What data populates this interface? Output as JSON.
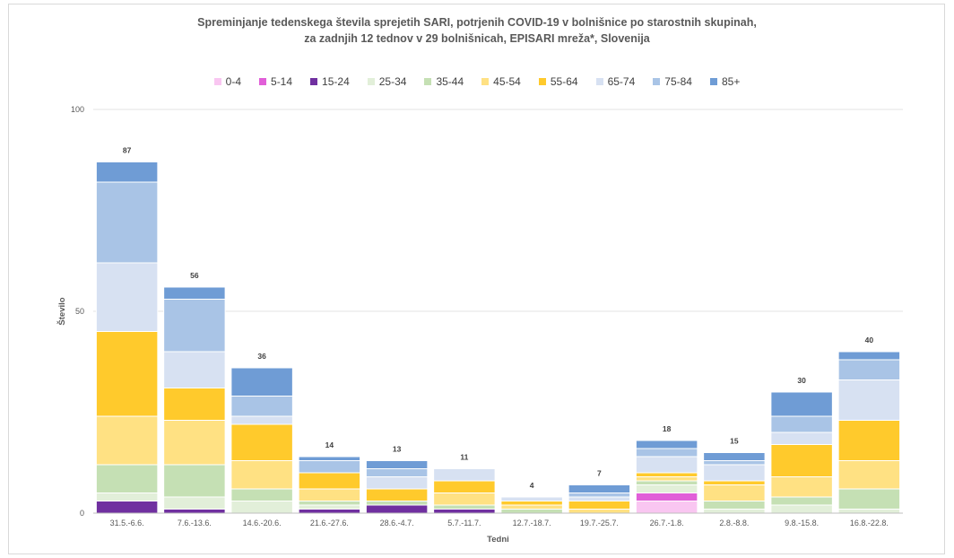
{
  "title_lines": [
    "Spreminjanje tedenskega števila sprejetih SARI, potrjenih COVID-19 v bolnišnice po starostnih skupinah,",
    "za zadnjih 12 tednov v 29 bolnišnicah, EPISARI mreža*, Slovenija"
  ],
  "chart_data": {
    "type": "bar",
    "stacked": true,
    "title": "Spreminjanje tedenskega števila sprejetih SARI, potrjenih COVID-19 v bolnišnice po starostnih skupinah, za zadnjih 12 tednov v 29 bolnišnicah, EPISARI mreža*, Slovenija",
    "xlabel": "Tedni",
    "ylabel": "Število",
    "ylim": [
      0,
      100
    ],
    "yticks": [
      "0",
      "50",
      "100"
    ],
    "grid": true,
    "legend_position": "top",
    "categories": [
      "31.5.-6.6.",
      "7.6.-13.6.",
      "14.6.-20.6.",
      "21.6.-27.6.",
      "28.6.-4.7.",
      "5.7.-11.7.",
      "12.7.-18.7.",
      "19.7.-25.7.",
      "26.7.-1.8.",
      "2.8.-8.8.",
      "9.8.-15.8.",
      "16.8.-22.8."
    ],
    "totals": [
      "87",
      "56",
      "36",
      "14",
      "13",
      "11",
      "4",
      "7",
      "18",
      "15",
      "30",
      "40"
    ],
    "series": [
      {
        "name": "0-4",
        "color": "#f9c6f1",
        "values": [
          0,
          0,
          0,
          0,
          0,
          0,
          0,
          0,
          3,
          0,
          0,
          0
        ]
      },
      {
        "name": "5-14",
        "color": "#e15fd8",
        "values": [
          0,
          0,
          0,
          0,
          0,
          0,
          0,
          0,
          2,
          0,
          0,
          0
        ]
      },
      {
        "name": "15-24",
        "color": "#7030a0",
        "values": [
          3,
          1,
          0,
          1,
          2,
          1,
          0,
          0,
          0,
          0,
          0,
          0
        ]
      },
      {
        "name": "25-34",
        "color": "#e2efd9",
        "values": [
          2,
          3,
          3,
          1,
          0,
          0,
          0,
          0,
          2,
          1,
          2,
          1
        ]
      },
      {
        "name": "35-44",
        "color": "#c5e0b4",
        "values": [
          7,
          8,
          3,
          1,
          1,
          1,
          1,
          0,
          1,
          2,
          2,
          5
        ]
      },
      {
        "name": "45-54",
        "color": "#ffe183",
        "values": [
          12,
          11,
          7,
          3,
          0,
          3,
          1,
          1,
          1,
          4,
          5,
          7
        ]
      },
      {
        "name": "55-64",
        "color": "#ffca2c",
        "values": [
          21,
          8,
          9,
          4,
          3,
          3,
          1,
          2,
          1,
          1,
          8,
          10
        ]
      },
      {
        "name": "65-74",
        "color": "#d7e1f2",
        "values": [
          17,
          9,
          2,
          0,
          3,
          3,
          1,
          1,
          4,
          4,
          3,
          10
        ]
      },
      {
        "name": "75-84",
        "color": "#a9c4e6",
        "values": [
          20,
          13,
          5,
          3,
          2,
          0,
          0,
          1,
          2,
          1,
          4,
          5
        ]
      },
      {
        "name": "85+",
        "color": "#6f9cd5",
        "values": [
          5,
          3,
          7,
          1,
          2,
          0,
          0,
          2,
          2,
          2,
          6,
          2
        ]
      }
    ]
  }
}
